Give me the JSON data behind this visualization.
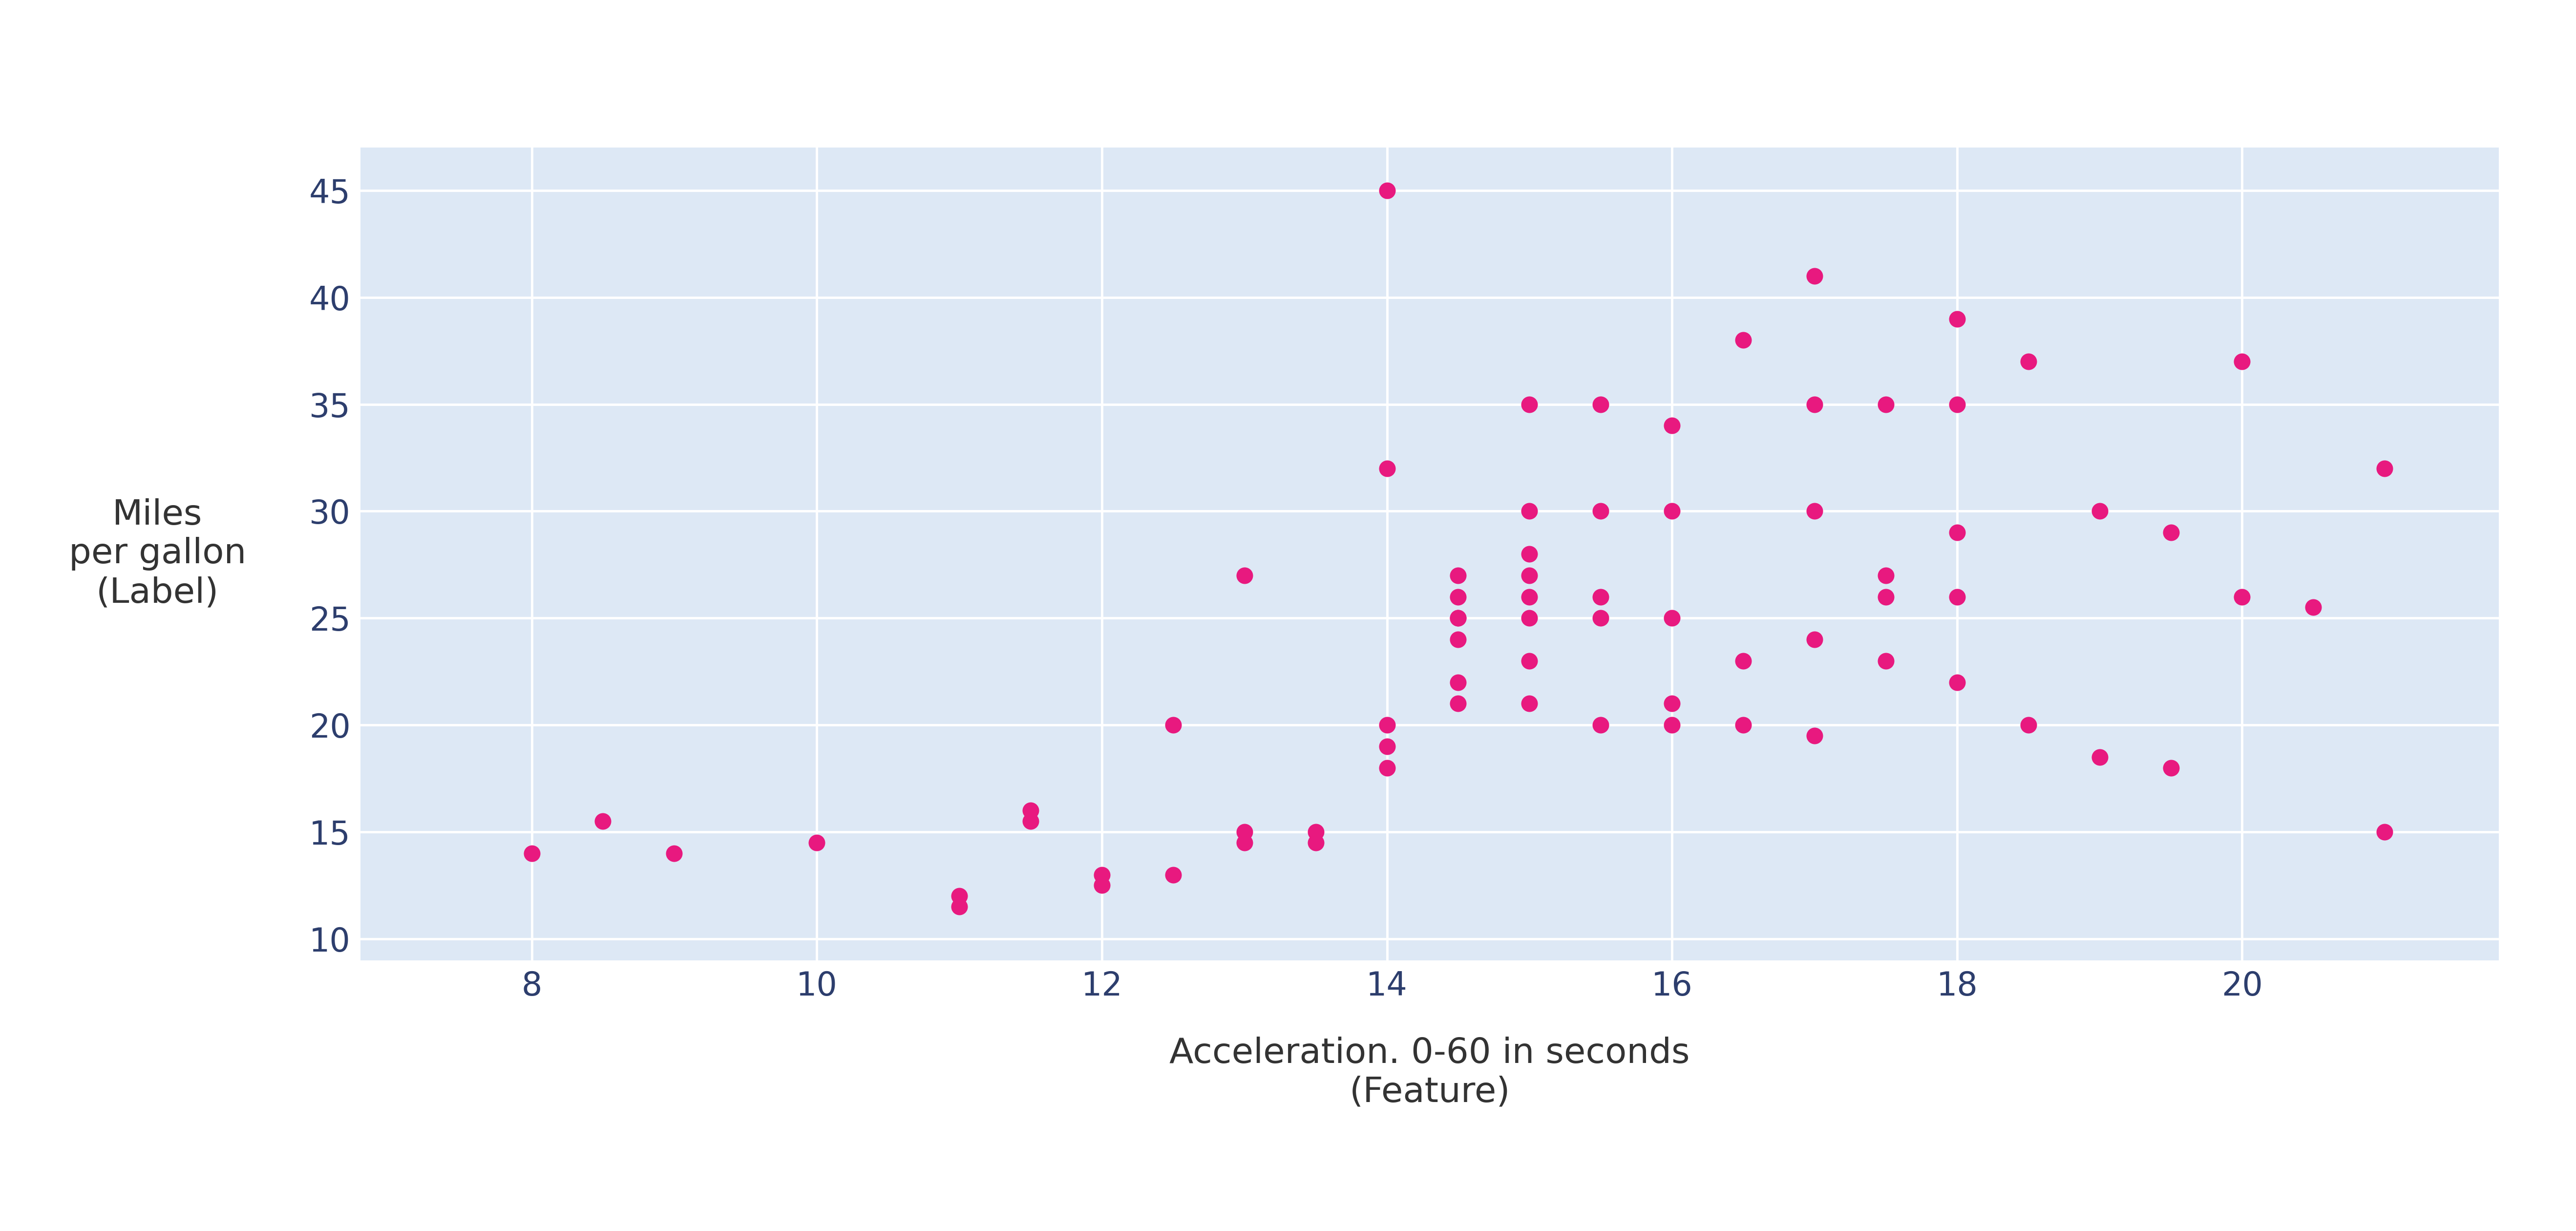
{
  "x_data": [
    8.0,
    8.5,
    9.0,
    10.0,
    11.0,
    11.0,
    11.5,
    11.5,
    12.0,
    12.0,
    12.5,
    12.5,
    13.0,
    13.0,
    13.0,
    13.5,
    13.5,
    14.0,
    14.0,
    14.0,
    14.0,
    14.0,
    14.5,
    14.5,
    14.5,
    14.5,
    14.5,
    14.5,
    14.5,
    15.0,
    15.0,
    15.0,
    15.0,
    15.0,
    15.0,
    15.0,
    15.0,
    15.5,
    15.5,
    15.5,
    15.5,
    15.5,
    16.0,
    16.0,
    16.0,
    16.0,
    16.0,
    16.5,
    16.5,
    16.5,
    17.0,
    17.0,
    17.0,
    17.0,
    17.0,
    17.5,
    17.5,
    17.5,
    17.5,
    18.0,
    18.0,
    18.0,
    18.0,
    18.0,
    18.5,
    18.5,
    19.0,
    19.0,
    19.5,
    19.5,
    20.0,
    20.0,
    20.5,
    21.0,
    21.0
  ],
  "y_data": [
    14.0,
    15.5,
    14.0,
    14.5,
    12.0,
    11.5,
    16.0,
    15.5,
    12.5,
    13.0,
    20.0,
    13.0,
    27.0,
    15.0,
    14.5,
    15.0,
    14.5,
    45.0,
    32.0,
    20.0,
    19.0,
    18.0,
    27.0,
    26.0,
    25.0,
    25.0,
    24.0,
    22.0,
    21.0,
    35.0,
    30.0,
    28.0,
    27.0,
    26.0,
    25.0,
    23.0,
    21.0,
    35.0,
    30.0,
    26.0,
    25.0,
    20.0,
    34.0,
    30.0,
    25.0,
    21.0,
    20.0,
    38.0,
    23.0,
    20.0,
    41.0,
    35.0,
    30.0,
    24.0,
    19.5,
    35.0,
    27.0,
    26.0,
    23.0,
    39.0,
    35.0,
    29.0,
    26.0,
    22.0,
    37.0,
    20.0,
    30.0,
    18.5,
    29.0,
    18.0,
    37.0,
    26.0,
    25.5,
    32.0,
    15.0
  ],
  "point_color": "#e8197f",
  "point_size": 600,
  "marker": "o",
  "xlabel_line1": "Acceleration. 0-60 in seconds",
  "xlabel_line2": "(Feature)",
  "ylabel_line1": "Miles",
  "ylabel_line2": "per gallon",
  "ylabel_line3": "(Label)",
  "xlim": [
    6.8,
    21.8
  ],
  "ylim": [
    9.0,
    47.0
  ],
  "xticks": [
    8,
    10,
    12,
    14,
    16,
    18,
    20
  ],
  "yticks": [
    10,
    15,
    20,
    25,
    30,
    35,
    40,
    45
  ],
  "tick_color": "#2d3e6d",
  "label_color": "#333333",
  "axes_bg_color": "#dde8f5",
  "figure_bg_color": "#ffffff",
  "grid_color": "#ffffff",
  "grid_linewidth": 3.5,
  "xlabel_fontsize": 52,
  "ylabel_fontsize": 52,
  "tick_fontsize": 48
}
